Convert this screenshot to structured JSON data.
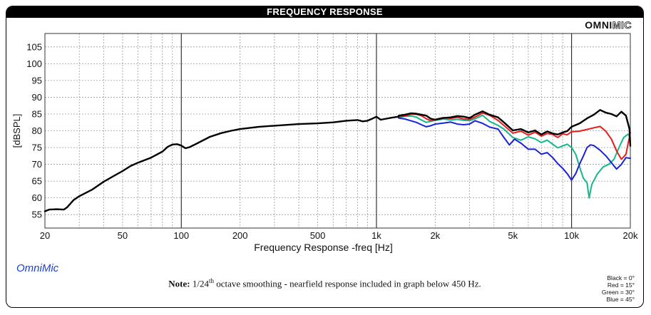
{
  "header": {
    "title": "FREQUENCY RESPONSE"
  },
  "brand": {
    "part1": "OMNI",
    "part2": "MIC"
  },
  "footer": {
    "app_label": "OmniMic",
    "note_bold": "Note:",
    "note_prefix": " 1/24",
    "note_sup": "th",
    "note_rest": " octave smoothing - nearfield response included in graph below 450 Hz.",
    "legend": [
      "Black = 0°",
      "Red = 15°",
      "Green = 30°",
      "Blue = 45°"
    ]
  },
  "chart_data": {
    "type": "line",
    "xlabel": "Frequency Response -freq [Hz]",
    "ylabel": "[dBSPL]",
    "xscale": "log",
    "xlim": [
      20,
      20000
    ],
    "ylim": [
      51,
      109
    ],
    "x_ticks": [
      20,
      50,
      100,
      200,
      500,
      1000,
      2000,
      5000,
      10000,
      20000
    ],
    "x_tick_labels": [
      "20",
      "50",
      "100",
      "200",
      "500",
      "1k",
      "2k",
      "5k",
      "10k",
      "20k"
    ],
    "y_ticks": [
      55,
      60,
      65,
      70,
      75,
      80,
      85,
      90,
      95,
      100,
      105
    ],
    "y_tick_labels": [
      "55",
      "60",
      "65",
      "70",
      "75",
      "80",
      "85",
      "90",
      "95",
      "100",
      "105"
    ],
    "grid": true,
    "colors": {
      "0deg": "#000000",
      "15deg": "#e81c1c",
      "30deg": "#14b88a",
      "45deg": "#1a22d8"
    },
    "base_curve": [
      [
        20,
        56
      ],
      [
        21,
        56.5
      ],
      [
        23,
        56.6
      ],
      [
        25,
        56.5
      ],
      [
        26,
        57.2
      ],
      [
        28,
        59.3
      ],
      [
        30,
        60.5
      ],
      [
        35,
        62.5
      ],
      [
        40,
        64.8
      ],
      [
        45,
        66.5
      ],
      [
        50,
        68
      ],
      [
        55,
        69.5
      ],
      [
        60,
        70.5
      ],
      [
        70,
        72
      ],
      [
        80,
        73.8
      ],
      [
        85,
        75.2
      ],
      [
        90,
        75.9
      ],
      [
        95,
        76
      ],
      [
        100,
        75.6
      ],
      [
        105,
        74.8
      ],
      [
        110,
        75.1
      ],
      [
        120,
        76.2
      ],
      [
        140,
        78.2
      ],
      [
        160,
        79.3
      ],
      [
        180,
        80
      ],
      [
        200,
        80.5
      ],
      [
        250,
        81.2
      ],
      [
        300,
        81.5
      ],
      [
        400,
        82
      ],
      [
        500,
        82.2
      ],
      [
        600,
        82.5
      ],
      [
        700,
        83
      ],
      [
        800,
        83.2
      ],
      [
        850,
        82.8
      ],
      [
        900,
        83
      ],
      [
        950,
        83.6
      ],
      [
        1000,
        84.2
      ],
      [
        1050,
        83.3
      ],
      [
        1100,
        83.5
      ],
      [
        1200,
        83.9
      ],
      [
        1300,
        84.2
      ]
    ],
    "series": [
      {
        "name": "",
        "color": "#14b88a",
        "points": [
          [
            1300,
            84
          ],
          [
            1400,
            84.3
          ],
          [
            1500,
            84.4
          ],
          [
            1600,
            84.1
          ],
          [
            1700,
            83.2
          ],
          [
            1800,
            82.5
          ],
          [
            1900,
            82.8
          ],
          [
            2000,
            83.1
          ],
          [
            2200,
            83.5
          ],
          [
            2400,
            83.2
          ],
          [
            2600,
            83.4
          ],
          [
            2800,
            83.1
          ],
          [
            3000,
            83
          ],
          [
            3200,
            83.6
          ],
          [
            3500,
            84.6
          ],
          [
            3800,
            82.8
          ],
          [
            4200,
            81.6
          ],
          [
            4500,
            80.5
          ],
          [
            5000,
            78
          ],
          [
            5500,
            77.2
          ],
          [
            6000,
            78.2
          ],
          [
            6500,
            77.6
          ],
          [
            7000,
            76.5
          ],
          [
            7500,
            77.2
          ],
          [
            8000,
            76
          ],
          [
            8500,
            74.9
          ],
          [
            9000,
            75.5
          ],
          [
            9500,
            76
          ],
          [
            10000,
            75
          ],
          [
            10500,
            73
          ],
          [
            11000,
            69.2
          ],
          [
            11500,
            65.8
          ],
          [
            12000,
            64.5
          ],
          [
            12300,
            60
          ],
          [
            12700,
            64
          ],
          [
            13500,
            67
          ],
          [
            14500,
            69.2
          ],
          [
            15500,
            70
          ],
          [
            16500,
            71.5
          ],
          [
            17500,
            75
          ],
          [
            18500,
            78
          ],
          [
            19500,
            79
          ],
          [
            20000,
            77.8
          ]
        ]
      },
      {
        "name": "",
        "color": "#1a22d8",
        "points": [
          [
            1300,
            83.8
          ],
          [
            1400,
            83.5
          ],
          [
            1500,
            83
          ],
          [
            1600,
            82.5
          ],
          [
            1700,
            81.8
          ],
          [
            1800,
            81.2
          ],
          [
            1900,
            81.5
          ],
          [
            2000,
            82
          ],
          [
            2200,
            82.3
          ],
          [
            2400,
            82.6
          ],
          [
            2600,
            82
          ],
          [
            2800,
            81.8
          ],
          [
            3000,
            82
          ],
          [
            3200,
            83
          ],
          [
            3500,
            82.2
          ],
          [
            3800,
            81.1
          ],
          [
            4200,
            80.5
          ],
          [
            4500,
            78
          ],
          [
            4800,
            75.8
          ],
          [
            5100,
            77.5
          ],
          [
            5500,
            76.3
          ],
          [
            6000,
            74.5
          ],
          [
            6500,
            74.5
          ],
          [
            7000,
            73
          ],
          [
            7500,
            73.5
          ],
          [
            8000,
            72
          ],
          [
            8500,
            70.2
          ],
          [
            9000,
            68.8
          ],
          [
            9500,
            67.2
          ],
          [
            10000,
            65.3
          ],
          [
            10500,
            67.2
          ],
          [
            11000,
            70.1
          ],
          [
            11500,
            72.5
          ],
          [
            12000,
            75
          ],
          [
            12500,
            75.8
          ],
          [
            13000,
            75.6
          ],
          [
            14000,
            74.2
          ],
          [
            15000,
            72.5
          ],
          [
            16000,
            70.5
          ],
          [
            17000,
            68.6
          ],
          [
            18000,
            70
          ],
          [
            19000,
            72
          ],
          [
            20000,
            71.8
          ]
        ]
      },
      {
        "name": "",
        "color": "#e81c1c",
        "points": [
          [
            1300,
            84.2
          ],
          [
            1400,
            84.4
          ],
          [
            1500,
            84.9
          ],
          [
            1600,
            84.9
          ],
          [
            1700,
            84.5
          ],
          [
            1800,
            83.6
          ],
          [
            1900,
            83
          ],
          [
            2000,
            83.4
          ],
          [
            2200,
            83.9
          ],
          [
            2400,
            83.7
          ],
          [
            2600,
            84
          ],
          [
            2800,
            83.5
          ],
          [
            3000,
            83.4
          ],
          [
            3200,
            84.1
          ],
          [
            3500,
            85.3
          ],
          [
            3800,
            84.6
          ],
          [
            4200,
            83.1
          ],
          [
            4500,
            81.6
          ],
          [
            5000,
            79.3
          ],
          [
            5500,
            79.9
          ],
          [
            6000,
            78.7
          ],
          [
            6500,
            79.6
          ],
          [
            7000,
            78.4
          ],
          [
            7500,
            79.2
          ],
          [
            8000,
            78.9
          ],
          [
            8500,
            78
          ],
          [
            9000,
            79.1
          ],
          [
            9500,
            78.8
          ],
          [
            10000,
            79.7
          ],
          [
            11000,
            79.9
          ],
          [
            12000,
            80.4
          ],
          [
            13000,
            80.9
          ],
          [
            14000,
            81.3
          ],
          [
            15000,
            79.8
          ],
          [
            16000,
            77.5
          ],
          [
            17000,
            74
          ],
          [
            18000,
            71.5
          ],
          [
            19000,
            73
          ],
          [
            20000,
            79.5
          ]
        ]
      },
      {
        "name": "",
        "color": "#000000",
        "points": [
          [
            1300,
            84.5
          ],
          [
            1400,
            84.8
          ],
          [
            1500,
            85.2
          ],
          [
            1600,
            85.1
          ],
          [
            1700,
            84.8
          ],
          [
            1800,
            84.5
          ],
          [
            1900,
            83.6
          ],
          [
            2000,
            83.3
          ],
          [
            2200,
            83.8
          ],
          [
            2400,
            84
          ],
          [
            2600,
            84.4
          ],
          [
            2800,
            84.2
          ],
          [
            3000,
            83.8
          ],
          [
            3200,
            84.8
          ],
          [
            3500,
            85.8
          ],
          [
            3800,
            84.8
          ],
          [
            4200,
            84
          ],
          [
            4500,
            82.5
          ],
          [
            5000,
            80.1
          ],
          [
            5500,
            80.5
          ],
          [
            6000,
            79.5
          ],
          [
            6500,
            80.1
          ],
          [
            7000,
            78.9
          ],
          [
            7500,
            79.8
          ],
          [
            8000,
            79.2
          ],
          [
            8500,
            78.9
          ],
          [
            9000,
            79.5
          ],
          [
            9500,
            79.9
          ],
          [
            10000,
            81.2
          ],
          [
            11000,
            82.2
          ],
          [
            12000,
            83.7
          ],
          [
            13000,
            84.8
          ],
          [
            14000,
            86.2
          ],
          [
            15000,
            85.4
          ],
          [
            16000,
            85
          ],
          [
            17000,
            84.3
          ],
          [
            18000,
            85.7
          ],
          [
            19000,
            84.5
          ],
          [
            19800,
            80.5
          ],
          [
            20000,
            75.5
          ]
        ]
      }
    ]
  }
}
